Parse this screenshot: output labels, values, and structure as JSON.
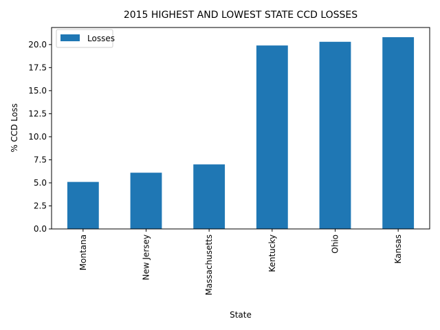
{
  "chart_data": {
    "type": "bar",
    "title": "2015 HIGHEST AND LOWEST STATE CCD LOSSES",
    "xlabel": "State",
    "ylabel": "% CCD Loss",
    "categories": [
      "Montana",
      "New Jersey",
      "Massachusetts",
      "Kentucky",
      "Ohio",
      "Kansas"
    ],
    "series": [
      {
        "name": "Losses",
        "values": [
          5.1,
          6.1,
          7.0,
          19.9,
          20.3,
          20.8
        ],
        "color": "#1f77b4"
      }
    ],
    "ylim": [
      0,
      21.85
    ],
    "yticks": [
      0.0,
      2.5,
      5.0,
      7.5,
      10.0,
      12.5,
      15.0,
      17.5,
      20.0
    ],
    "ytick_labels": [
      "0.0",
      "2.5",
      "5.0",
      "7.5",
      "10.0",
      "12.5",
      "15.0",
      "17.5",
      "20.0"
    ],
    "grid": false,
    "legend_position": "top-left"
  }
}
